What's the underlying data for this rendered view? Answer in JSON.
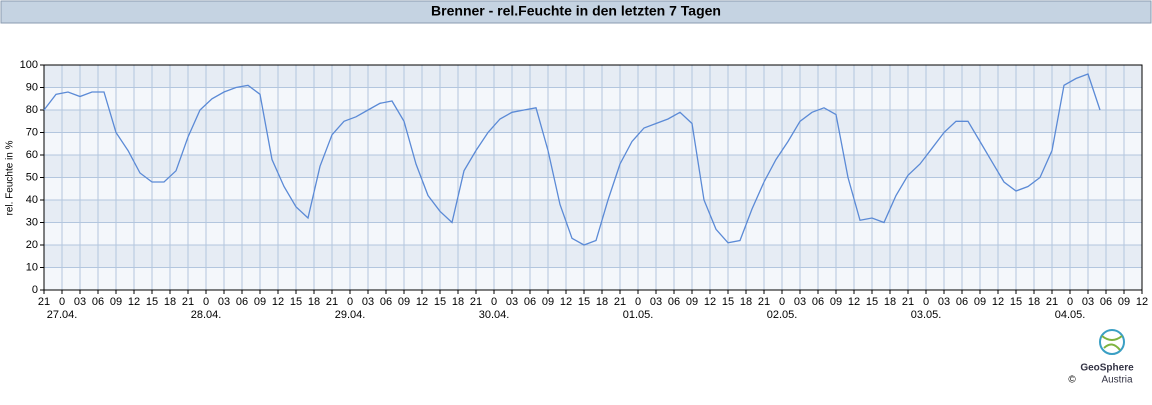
{
  "chart_data": {
    "type": "line",
    "title": "Brenner - rel.Feuchte in den letzten 7 Tagen",
    "y_label": "rel. Feuchte in %",
    "logo": {
      "name": "GeoSphere",
      "sub": "Austria",
      "copyright": "©"
    },
    "xlim": [
      0,
      183
    ],
    "xticks": [
      {
        "value": 0,
        "label": "21"
      },
      {
        "value": 3,
        "label": "0"
      },
      {
        "value": 6,
        "label": "03"
      },
      {
        "value": 9,
        "label": "06"
      },
      {
        "value": 12,
        "label": "09"
      },
      {
        "value": 15,
        "label": "12"
      },
      {
        "value": 18,
        "label": "15"
      },
      {
        "value": 21,
        "label": "18"
      },
      {
        "value": 24,
        "label": "21"
      },
      {
        "value": 27,
        "label": "0"
      },
      {
        "value": 30,
        "label": "03"
      },
      {
        "value": 33,
        "label": "06"
      },
      {
        "value": 36,
        "label": "09"
      },
      {
        "value": 39,
        "label": "12"
      },
      {
        "value": 42,
        "label": "15"
      },
      {
        "value": 45,
        "label": "18"
      },
      {
        "value": 48,
        "label": "21"
      },
      {
        "value": 51,
        "label": "0"
      },
      {
        "value": 54,
        "label": "03"
      },
      {
        "value": 57,
        "label": "06"
      },
      {
        "value": 60,
        "label": "09"
      },
      {
        "value": 63,
        "label": "12"
      },
      {
        "value": 66,
        "label": "15"
      },
      {
        "value": 69,
        "label": "18"
      },
      {
        "value": 72,
        "label": "21"
      },
      {
        "value": 75,
        "label": "0"
      },
      {
        "value": 78,
        "label": "03"
      },
      {
        "value": 81,
        "label": "06"
      },
      {
        "value": 84,
        "label": "09"
      },
      {
        "value": 87,
        "label": "12"
      },
      {
        "value": 90,
        "label": "15"
      },
      {
        "value": 93,
        "label": "18"
      },
      {
        "value": 96,
        "label": "21"
      },
      {
        "value": 99,
        "label": "0"
      },
      {
        "value": 102,
        "label": "03"
      },
      {
        "value": 105,
        "label": "06"
      },
      {
        "value": 108,
        "label": "09"
      },
      {
        "value": 111,
        "label": "12"
      },
      {
        "value": 114,
        "label": "15"
      },
      {
        "value": 117,
        "label": "18"
      },
      {
        "value": 120,
        "label": "21"
      },
      {
        "value": 123,
        "label": "0"
      },
      {
        "value": 126,
        "label": "03"
      },
      {
        "value": 129,
        "label": "06"
      },
      {
        "value": 132,
        "label": "09"
      },
      {
        "value": 135,
        "label": "12"
      },
      {
        "value": 138,
        "label": "15"
      },
      {
        "value": 141,
        "label": "18"
      },
      {
        "value": 144,
        "label": "21"
      },
      {
        "value": 147,
        "label": "0"
      },
      {
        "value": 150,
        "label": "03"
      },
      {
        "value": 153,
        "label": "06"
      },
      {
        "value": 156,
        "label": "09"
      },
      {
        "value": 159,
        "label": "12"
      },
      {
        "value": 162,
        "label": "15"
      },
      {
        "value": 165,
        "label": "18"
      },
      {
        "value": 168,
        "label": "21"
      },
      {
        "value": 171,
        "label": "0"
      },
      {
        "value": 174,
        "label": "03"
      },
      {
        "value": 177,
        "label": "06"
      },
      {
        "value": 180,
        "label": "09"
      },
      {
        "value": 183,
        "label": "12"
      }
    ],
    "date_labels": [
      {
        "value": 3,
        "label": "27.04."
      },
      {
        "value": 27,
        "label": "28.04."
      },
      {
        "value": 51,
        "label": "29.04."
      },
      {
        "value": 75,
        "label": "30.04."
      },
      {
        "value": 99,
        "label": "01.05."
      },
      {
        "value": 123,
        "label": "02.05."
      },
      {
        "value": 147,
        "label": "03.05."
      },
      {
        "value": 171,
        "label": "04.05."
      }
    ],
    "ylim": [
      0,
      100
    ],
    "yticks": [
      0,
      10,
      20,
      30,
      40,
      50,
      60,
      70,
      80,
      90,
      100
    ],
    "grid": true,
    "color": "#5b8ad6",
    "x": [
      0,
      2,
      4,
      6,
      8,
      10,
      12,
      14,
      16,
      18,
      20,
      22,
      24,
      26,
      28,
      30,
      32,
      34,
      36,
      38,
      40,
      42,
      44,
      46,
      48,
      50,
      52,
      54,
      56,
      58,
      60,
      62,
      64,
      66,
      68,
      70,
      72,
      74,
      76,
      78,
      80,
      82,
      84,
      86,
      88,
      90,
      92,
      94,
      96,
      98,
      100,
      102,
      104,
      106,
      108,
      110,
      112,
      114,
      116,
      118,
      120,
      122,
      124,
      126,
      128,
      130,
      132,
      134,
      136,
      138,
      140,
      142,
      144,
      146,
      148,
      150,
      152,
      154,
      156,
      158,
      160,
      162,
      164,
      166,
      168,
      170,
      172,
      174,
      176
    ],
    "values": [
      80,
      87,
      88,
      86,
      88,
      88,
      70,
      62,
      52,
      48,
      48,
      53,
      68,
      80,
      85,
      88,
      90,
      91,
      87,
      58,
      46,
      37,
      32,
      55,
      69,
      75,
      77,
      80,
      83,
      84,
      75,
      56,
      42,
      35,
      30,
      53,
      62,
      70,
      76,
      79,
      80,
      81,
      62,
      38,
      23,
      20,
      22,
      40,
      56,
      66,
      72,
      74,
      76,
      79,
      74,
      40,
      27,
      21,
      22,
      36,
      48,
      58,
      66,
      75,
      79,
      81,
      78,
      50,
      31,
      32,
      30,
      42,
      51,
      56,
      63,
      70,
      75,
      75,
      66,
      57,
      48,
      44,
      46,
      50,
      62,
      91,
      94,
      96,
      80
    ]
  }
}
